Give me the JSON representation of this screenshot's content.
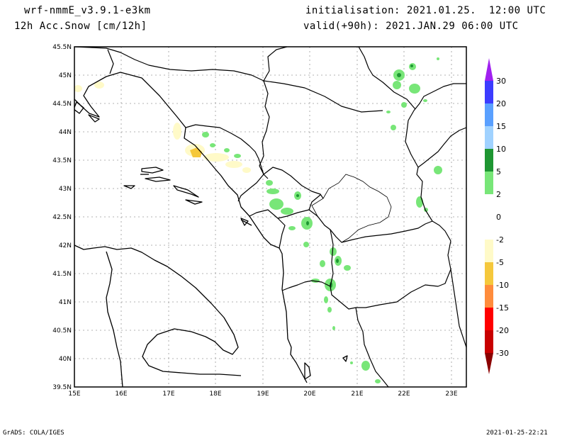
{
  "header": {
    "model": "wrf-nmmE_v3.9.1-e3km",
    "field": "12h Acc.Snow [cm/12h]",
    "init": "initialisation: 2021.01.25.  12:00 UTC",
    "valid": "valid(+90h): 2021.JAN.29 06:00 UTC"
  },
  "footer": {
    "credit": "GrADS: COLA/IGES",
    "timestamp": "2021-01-25-22:21"
  },
  "map": {
    "lat_labels": [
      "45.5N",
      "45N",
      "44.5N",
      "44N",
      "43.5N",
      "43N",
      "42.5N",
      "42N",
      "41.5N",
      "41N",
      "40.5N",
      "40N",
      "39.5N"
    ],
    "lon_labels": [
      "15E",
      "16E",
      "17E",
      "18E",
      "19E",
      "20E",
      "21E",
      "22E",
      "23E"
    ],
    "lat_range": [
      39.5,
      45.5
    ],
    "lon_range": [
      15,
      23.3
    ]
  },
  "legend": {
    "labels": [
      "30",
      "20",
      "15",
      "10",
      "5",
      "2",
      "0",
      "-2",
      "-5",
      "-10",
      "-15",
      "-20",
      "-30"
    ],
    "colors": [
      "#a020f0",
      "#3c3cff",
      "#5aa0ff",
      "#a0d2ff",
      "#1e9632",
      "#78e678",
      "#ffffff",
      "#fffac8",
      "#f5c83c",
      "#ff8c3c",
      "#ff0000",
      "#c80000",
      "#8b0000"
    ]
  }
}
